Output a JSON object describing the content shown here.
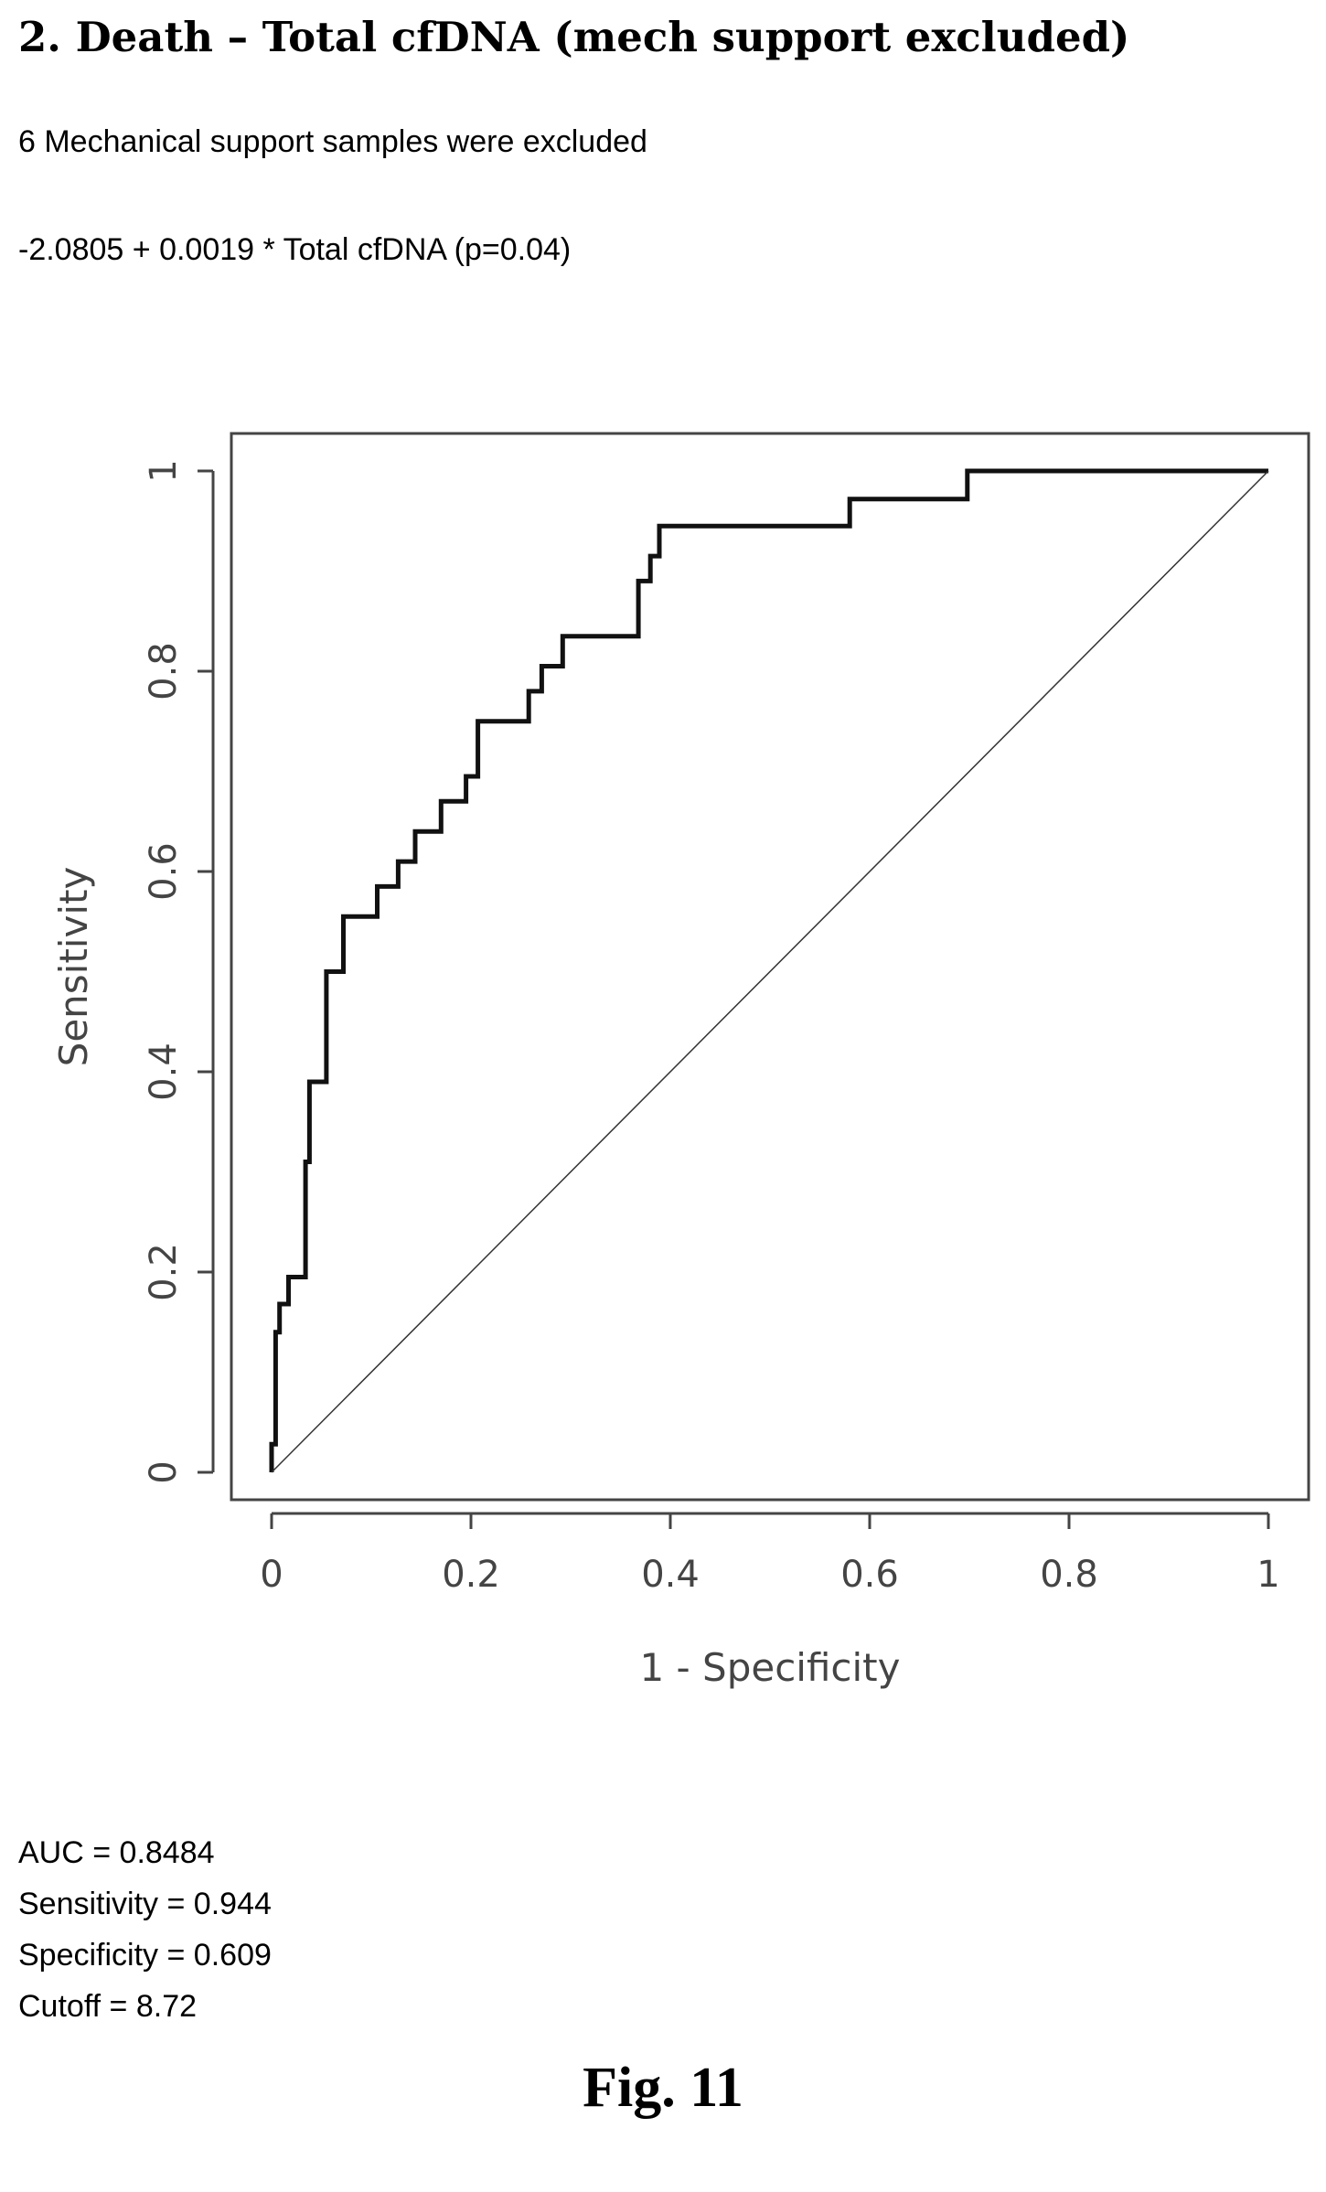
{
  "heading": "2. Death – Total cfDNA (mech support excluded)",
  "note": "6 Mechanical support samples were excluded",
  "formula": "-2.0805 + 0.0019 * Total cfDNA  (p=0.04)",
  "chart_data": {
    "type": "line",
    "title": "",
    "xlabel": "1 - Specificity",
    "ylabel": "Sensitivity",
    "xlim": [
      0,
      1
    ],
    "ylim": [
      0,
      1
    ],
    "x_ticks": [
      0,
      0.2,
      0.4,
      0.6,
      0.8,
      1
    ],
    "y_ticks": [
      0,
      0.2,
      0.4,
      0.6,
      0.8,
      1
    ],
    "x_tick_labels": [
      "0",
      "0.2",
      "0.4",
      "0.6",
      "0.8",
      "1"
    ],
    "y_tick_labels": [
      "0",
      "0.2",
      "0.4",
      "0.6",
      "0.8",
      "1"
    ],
    "grid": false,
    "series": [
      {
        "x": [
          0,
          0,
          0.004,
          0.004,
          0.008,
          0.008,
          0.017,
          0.017,
          0.034,
          0.034,
          0.038,
          0.038,
          0.055,
          0.055,
          0.072,
          0.072,
          0.106,
          0.106,
          0.127,
          0.127,
          0.144,
          0.144,
          0.17,
          0.17,
          0.195,
          0.195,
          0.207,
          0.207,
          0.258,
          0.258,
          0.271,
          0.271,
          0.292,
          0.292,
          0.368,
          0.368,
          0.38,
          0.38,
          0.389,
          0.389,
          0.58,
          0.58,
          0.698,
          0.698,
          1.0
        ],
        "y": [
          0,
          0.028,
          0.028,
          0.14,
          0.14,
          0.168,
          0.168,
          0.195,
          0.195,
          0.31,
          0.31,
          0.39,
          0.39,
          0.5,
          0.5,
          0.555,
          0.555,
          0.585,
          0.585,
          0.61,
          0.61,
          0.64,
          0.64,
          0.67,
          0.67,
          0.695,
          0.695,
          0.75,
          0.75,
          0.78,
          0.78,
          0.805,
          0.805,
          0.835,
          0.835,
          0.89,
          0.89,
          0.915,
          0.915,
          0.945,
          0.945,
          0.972,
          0.972,
          1.0,
          1.0
        ]
      },
      {
        "x": [
          0,
          1
        ],
        "y": [
          0,
          1
        ]
      }
    ]
  },
  "stats": [
    "AUC = 0.8484",
    "Sensitivity = 0.944",
    "Specificity = 0.609",
    "Cutoff = 8.72"
  ],
  "figure_label": "Fig. 11"
}
